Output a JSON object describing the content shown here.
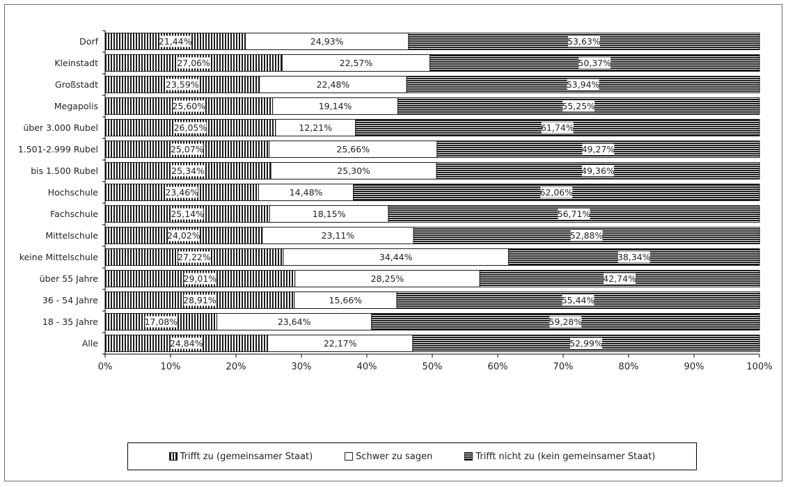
{
  "chart_data": {
    "type": "bar",
    "orientation": "horizontal",
    "stacked": true,
    "categories": [
      "Dorf",
      "Kleinstadt",
      "Großstadt",
      "Megapolis",
      "über 3.000 Rubel",
      "1.501-2.999 Rubel",
      "bis 1.500 Rubel",
      "Hochschule",
      "Fachschule",
      "Mittelschule",
      "keine Mittelschule",
      "über 55 Jahre",
      "36 - 54 Jahre",
      "18 - 35 Jahre",
      "Alle"
    ],
    "series": [
      {
        "name": "Trifft zu (gemeinsamer Staat)",
        "pattern": "vertical-stripes",
        "values": [
          21.44,
          27.06,
          23.59,
          25.6,
          26.05,
          25.07,
          25.34,
          23.46,
          25.14,
          24.02,
          27.22,
          29.01,
          28.91,
          17.08,
          24.84
        ],
        "labels": [
          "21,44%",
          "27,06%",
          "23,59%",
          "25,60%",
          "26,05%",
          "25,07%",
          "25,34%",
          "23,46%",
          "25,14%",
          "24,02%",
          "27,22%",
          "29,01%",
          "28,91%",
          "17,08%",
          "24,84%"
        ]
      },
      {
        "name": "Schwer zu sagen",
        "pattern": "solid-white",
        "values": [
          24.93,
          22.57,
          22.48,
          19.14,
          12.21,
          25.66,
          25.3,
          14.48,
          18.15,
          23.11,
          34.44,
          28.25,
          15.66,
          23.64,
          22.17
        ],
        "labels": [
          "24,93%",
          "22,57%",
          "22,48%",
          "19,14%",
          "12,21%",
          "25,66%",
          "25,30%",
          "14,48%",
          "18,15%",
          "23,11%",
          "34,44%",
          "28,25%",
          "15,66%",
          "23,64%",
          "22,17%"
        ]
      },
      {
        "name": "Trifft nicht zu (kein gemeinsamer Staat)",
        "pattern": "horizontal-stripes",
        "values": [
          53.63,
          50.37,
          53.94,
          55.25,
          61.74,
          49.27,
          49.36,
          62.06,
          56.71,
          52.88,
          38.34,
          42.74,
          55.44,
          59.28,
          52.99
        ],
        "labels": [
          "53,63%",
          "50,37%",
          "53,94%",
          "55,25%",
          "61,74%",
          "49,27%",
          "49,36%",
          "62,06%",
          "56,71%",
          "52,88%",
          "38,34%",
          "42,74%",
          "55,44%",
          "59,28%",
          "52,99%"
        ]
      }
    ],
    "x_ticks": [
      "0%",
      "10%",
      "20%",
      "30%",
      "40%",
      "50%",
      "60%",
      "70%",
      "80%",
      "90%",
      "100%"
    ],
    "xlim": [
      0,
      100
    ],
    "legend_position": "bottom",
    "grid": false,
    "colors": {
      "bar_dark": "#1a1a1a",
      "bar_light": "#ffffff",
      "text": "#222222"
    }
  }
}
